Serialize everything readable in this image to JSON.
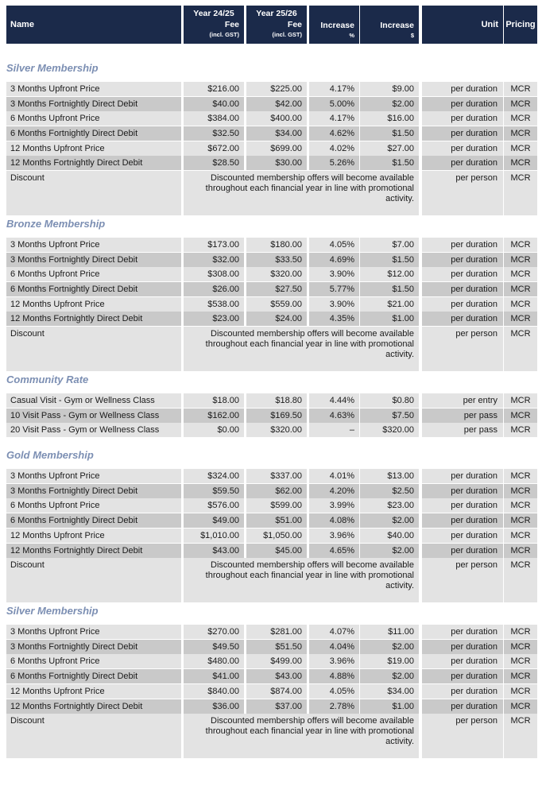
{
  "header": {
    "name": "Name",
    "year1_line1": "Year 24/25",
    "year1_line2": "Fee",
    "year1_line3": "(incl. GST)",
    "year2_line1": "Year 25/26",
    "year2_line2": "Fee",
    "year2_line3": "(incl. GST)",
    "inc_pct_line1": "Increase",
    "inc_pct_line2": "%",
    "inc_amt_line1": "Increase",
    "inc_amt_line2": "$",
    "unit": "Unit",
    "pricing": "Pricing"
  },
  "discount_note": {
    "line1": "Discounted membership offers will become available",
    "line2": "throughout each financial year in line with promotional",
    "line3": "activity."
  },
  "sections": [
    {
      "title": "Silver Membership",
      "rows": [
        {
          "name": "3 Months Upfront Price",
          "y1": "$216.00",
          "y2": "$225.00",
          "pct": "4.17%",
          "amt": "$9.00",
          "unit": "per duration",
          "pricing": "MCR"
        },
        {
          "name": "3 Months Fortnightly Direct Debit",
          "y1": "$40.00",
          "y2": "$42.00",
          "pct": "5.00%",
          "amt": "$2.00",
          "unit": "per duration",
          "pricing": "MCR"
        },
        {
          "name": "6 Months Upfront Price",
          "y1": "$384.00",
          "y2": "$400.00",
          "pct": "4.17%",
          "amt": "$16.00",
          "unit": "per duration",
          "pricing": "MCR"
        },
        {
          "name": "6 Months Fortnightly Direct Debit",
          "y1": "$32.50",
          "y2": "$34.00",
          "pct": "4.62%",
          "amt": "$1.50",
          "unit": "per duration",
          "pricing": "MCR"
        },
        {
          "name": "12 Months Upfront Price",
          "y1": "$672.00",
          "y2": "$699.00",
          "pct": "4.02%",
          "amt": "$27.00",
          "unit": "per duration",
          "pricing": "MCR"
        },
        {
          "name": "12 Months Fortnightly Direct Debit",
          "y1": "$28.50",
          "y2": "$30.00",
          "pct": "5.26%",
          "amt": "$1.50",
          "unit": "per duration",
          "pricing": "MCR"
        }
      ],
      "discount": {
        "name": "Discount",
        "unit": "per person",
        "pricing": "MCR"
      }
    },
    {
      "title": "Bronze Membership",
      "rows": [
        {
          "name": "3 Months Upfront Price",
          "y1": "$173.00",
          "y2": "$180.00",
          "pct": "4.05%",
          "amt": "$7.00",
          "unit": "per duration",
          "pricing": "MCR"
        },
        {
          "name": "3 Months Fortnightly Direct Debit",
          "y1": "$32.00",
          "y2": "$33.50",
          "pct": "4.69%",
          "amt": "$1.50",
          "unit": "per duration",
          "pricing": "MCR"
        },
        {
          "name": "6 Months Upfront Price",
          "y1": "$308.00",
          "y2": "$320.00",
          "pct": "3.90%",
          "amt": "$12.00",
          "unit": "per duration",
          "pricing": "MCR"
        },
        {
          "name": "6 Months Fortnightly Direct Debit",
          "y1": "$26.00",
          "y2": "$27.50",
          "pct": "5.77%",
          "amt": "$1.50",
          "unit": "per duration",
          "pricing": "MCR"
        },
        {
          "name": "12 Months Upfront Price",
          "y1": "$538.00",
          "y2": "$559.00",
          "pct": "3.90%",
          "amt": "$21.00",
          "unit": "per duration",
          "pricing": "MCR"
        },
        {
          "name": "12 Months Fortnightly Direct Debit",
          "y1": "$23.00",
          "y2": "$24.00",
          "pct": "4.35%",
          "amt": "$1.00",
          "unit": "per duration",
          "pricing": "MCR"
        }
      ],
      "discount": {
        "name": "Discount",
        "unit": "per person",
        "pricing": "MCR"
      }
    },
    {
      "title": "Community Rate",
      "rows": [
        {
          "name": "Casual Visit - Gym or Wellness Class",
          "y1": "$18.00",
          "y2": "$18.80",
          "pct": "4.44%",
          "amt": "$0.80",
          "unit": "per entry",
          "pricing": "MCR"
        },
        {
          "name": "10 Visit Pass - Gym or Wellness Class",
          "y1": "$162.00",
          "y2": "$169.50",
          "pct": "4.63%",
          "amt": "$7.50",
          "unit": "per pass",
          "pricing": "MCR"
        },
        {
          "name": "20 Visit Pass - Gym or Wellness Class",
          "y1": "$0.00",
          "y2": "$320.00",
          "pct": "–",
          "amt": "$320.00",
          "unit": "per pass",
          "pricing": "MCR"
        }
      ],
      "discount": null
    },
    {
      "title": "Gold Membership",
      "rows": [
        {
          "name": "3 Months Upfront Price",
          "y1": "$324.00",
          "y2": "$337.00",
          "pct": "4.01%",
          "amt": "$13.00",
          "unit": "per duration",
          "pricing": "MCR"
        },
        {
          "name": "3 Months Fortnightly Direct Debit",
          "y1": "$59.50",
          "y2": "$62.00",
          "pct": "4.20%",
          "amt": "$2.50",
          "unit": "per duration",
          "pricing": "MCR"
        },
        {
          "name": "6 Months Upfront Price",
          "y1": "$576.00",
          "y2": "$599.00",
          "pct": "3.99%",
          "amt": "$23.00",
          "unit": "per duration",
          "pricing": "MCR"
        },
        {
          "name": "6 Months Fortnightly Direct Debit",
          "y1": "$49.00",
          "y2": "$51.00",
          "pct": "4.08%",
          "amt": "$2.00",
          "unit": "per duration",
          "pricing": "MCR"
        },
        {
          "name": "12 Months Upfront Price",
          "y1": "$1,010.00",
          "y2": "$1,050.00",
          "pct": "3.96%",
          "amt": "$40.00",
          "unit": "per duration",
          "pricing": "MCR"
        },
        {
          "name": "12 Months Fortnightly Direct Debit",
          "y1": "$43.00",
          "y2": "$45.00",
          "pct": "4.65%",
          "amt": "$2.00",
          "unit": "per duration",
          "pricing": "MCR"
        }
      ],
      "discount": {
        "name": "Discount",
        "unit": "per person",
        "pricing": "MCR"
      }
    },
    {
      "title": "Silver Membership",
      "rows": [
        {
          "name": "3 Months Upfront Price",
          "y1": "$270.00",
          "y2": "$281.00",
          "pct": "4.07%",
          "amt": "$11.00",
          "unit": "per duration",
          "pricing": "MCR"
        },
        {
          "name": "3 Months Fortnightly Direct Debit",
          "y1": "$49.50",
          "y2": "$51.50",
          "pct": "4.04%",
          "amt": "$2.00",
          "unit": "per duration",
          "pricing": "MCR"
        },
        {
          "name": "6 Months Upfront Price",
          "y1": "$480.00",
          "y2": "$499.00",
          "pct": "3.96%",
          "amt": "$19.00",
          "unit": "per duration",
          "pricing": "MCR"
        },
        {
          "name": "6 Months Fortnightly Direct Debit",
          "y1": "$41.00",
          "y2": "$43.00",
          "pct": "4.88%",
          "amt": "$2.00",
          "unit": "per duration",
          "pricing": "MCR"
        },
        {
          "name": "12 Months Upfront Price",
          "y1": "$840.00",
          "y2": "$874.00",
          "pct": "4.05%",
          "amt": "$34.00",
          "unit": "per duration",
          "pricing": "MCR"
        },
        {
          "name": "12 Months Fortnightly Direct Debit",
          "y1": "$36.00",
          "y2": "$37.00",
          "pct": "2.78%",
          "amt": "$1.00",
          "unit": "per duration",
          "pricing": "MCR"
        }
      ],
      "discount": {
        "name": "Discount",
        "unit": "per person",
        "pricing": "MCR"
      }
    }
  ]
}
